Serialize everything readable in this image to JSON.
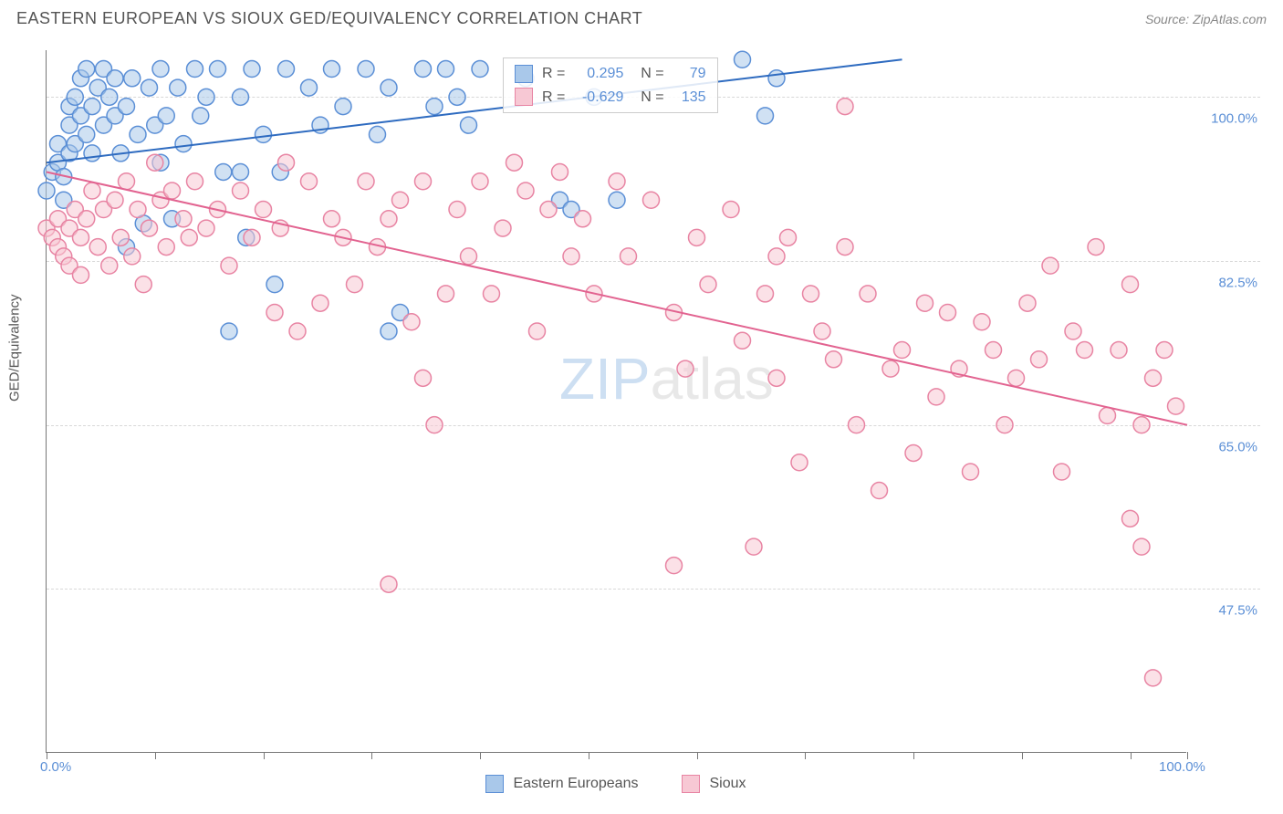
{
  "title": "EASTERN EUROPEAN VS SIOUX GED/EQUIVALENCY CORRELATION CHART",
  "source": "Source: ZipAtlas.com",
  "watermark": {
    "zip": "ZIP",
    "atlas": "atlas"
  },
  "chart": {
    "type": "scatter",
    "xlim": [
      0,
      100
    ],
    "ylim": [
      30,
      105
    ],
    "xlabel_min": "0.0%",
    "xlabel_max": "100.0%",
    "ylabel": "GED/Equivalency",
    "xtick_positions": [
      0.0,
      0.095,
      0.19,
      0.285,
      0.38,
      0.475,
      0.57,
      0.665,
      0.76,
      0.855,
      0.95,
      1.0
    ],
    "gridlines_y": [
      {
        "pct": 100.0,
        "label": "100.0%"
      },
      {
        "pct": 82.5,
        "label": "82.5%"
      },
      {
        "pct": 65.0,
        "label": "65.0%"
      },
      {
        "pct": 47.5,
        "label": "47.5%"
      }
    ],
    "background_color": "#ffffff",
    "grid_color": "#d8d8d8",
    "axis_color": "#777777",
    "tick_label_color": "#5b8fd6",
    "marker_radius": 9,
    "marker_opacity": 0.55,
    "marker_stroke_width": 1.5,
    "series": [
      {
        "name": "Eastern Europeans",
        "color_fill": "#a9c8ea",
        "color_stroke": "#5b8fd6",
        "R": "0.295",
        "N": "79",
        "trend": {
          "x1": 0,
          "y1": 93,
          "x2": 75,
          "y2": 104,
          "stroke": "#2e6bc0",
          "width": 2
        },
        "points": [
          [
            0,
            90
          ],
          [
            0.5,
            92
          ],
          [
            1,
            95
          ],
          [
            1,
            93
          ],
          [
            1.5,
            91.5
          ],
          [
            1.5,
            89
          ],
          [
            2,
            99
          ],
          [
            2,
            97
          ],
          [
            2,
            94
          ],
          [
            2.5,
            100
          ],
          [
            2.5,
            95
          ],
          [
            3,
            102
          ],
          [
            3,
            98
          ],
          [
            3.5,
            103
          ],
          [
            3.5,
            96
          ],
          [
            4,
            99
          ],
          [
            4,
            94
          ],
          [
            4.5,
            101
          ],
          [
            5,
            103
          ],
          [
            5,
            97
          ],
          [
            5.5,
            100
          ],
          [
            6,
            102
          ],
          [
            6,
            98
          ],
          [
            6.5,
            94
          ],
          [
            7,
            99
          ],
          [
            7,
            84
          ],
          [
            7.5,
            102
          ],
          [
            8,
            96
          ],
          [
            8.5,
            86.5
          ],
          [
            9,
            101
          ],
          [
            9.5,
            97
          ],
          [
            10,
            103
          ],
          [
            10,
            93
          ],
          [
            10.5,
            98
          ],
          [
            11,
            87
          ],
          [
            11.5,
            101
          ],
          [
            12,
            95
          ],
          [
            13,
            103
          ],
          [
            13.5,
            98
          ],
          [
            14,
            100
          ],
          [
            15,
            103
          ],
          [
            15.5,
            92
          ],
          [
            16,
            75
          ],
          [
            17,
            100
          ],
          [
            17,
            92
          ],
          [
            17.5,
            85
          ],
          [
            18,
            103
          ],
          [
            19,
            96
          ],
          [
            20,
            80
          ],
          [
            20.5,
            92
          ],
          [
            21,
            103
          ],
          [
            23,
            101
          ],
          [
            24,
            97
          ],
          [
            25,
            103
          ],
          [
            26,
            99
          ],
          [
            28,
            103
          ],
          [
            29,
            96
          ],
          [
            30,
            101
          ],
          [
            30,
            75
          ],
          [
            31,
            77
          ],
          [
            33,
            103
          ],
          [
            34,
            99
          ],
          [
            35,
            103
          ],
          [
            36,
            100
          ],
          [
            37,
            97
          ],
          [
            38,
            103
          ],
          [
            42,
            102
          ],
          [
            45,
            89
          ],
          [
            46,
            88
          ],
          [
            48,
            100
          ],
          [
            50,
            89
          ],
          [
            61,
            104
          ],
          [
            63,
            98
          ],
          [
            64,
            102
          ]
        ]
      },
      {
        "name": "Sioux",
        "color_fill": "#f7c8d4",
        "color_stroke": "#e884a3",
        "R": "-0.629",
        "N": "135",
        "trend": {
          "x1": 0,
          "y1": 92,
          "x2": 100,
          "y2": 65,
          "stroke": "#e26390",
          "width": 2
        },
        "points": [
          [
            0,
            86
          ],
          [
            0.5,
            85
          ],
          [
            1,
            87
          ],
          [
            1,
            84
          ],
          [
            1.5,
            83
          ],
          [
            2,
            86
          ],
          [
            2,
            82
          ],
          [
            2.5,
            88
          ],
          [
            3,
            85
          ],
          [
            3,
            81
          ],
          [
            3.5,
            87
          ],
          [
            4,
            90
          ],
          [
            4.5,
            84
          ],
          [
            5,
            88
          ],
          [
            5.5,
            82
          ],
          [
            6,
            89
          ],
          [
            6.5,
            85
          ],
          [
            7,
            91
          ],
          [
            7.5,
            83
          ],
          [
            8,
            88
          ],
          [
            8.5,
            80
          ],
          [
            9,
            86
          ],
          [
            9.5,
            93
          ],
          [
            10,
            89
          ],
          [
            10.5,
            84
          ],
          [
            11,
            90
          ],
          [
            12,
            87
          ],
          [
            12.5,
            85
          ],
          [
            13,
            91
          ],
          [
            14,
            86
          ],
          [
            15,
            88
          ],
          [
            16,
            82
          ],
          [
            17,
            90
          ],
          [
            18,
            85
          ],
          [
            19,
            88
          ],
          [
            20,
            77
          ],
          [
            20.5,
            86
          ],
          [
            21,
            93
          ],
          [
            22,
            75
          ],
          [
            23,
            91
          ],
          [
            24,
            78
          ],
          [
            25,
            87
          ],
          [
            26,
            85
          ],
          [
            27,
            80
          ],
          [
            28,
            91
          ],
          [
            29,
            84
          ],
          [
            30,
            48
          ],
          [
            30,
            87
          ],
          [
            31,
            89
          ],
          [
            32,
            76
          ],
          [
            33,
            70
          ],
          [
            33,
            91
          ],
          [
            34,
            65
          ],
          [
            35,
            79
          ],
          [
            36,
            88
          ],
          [
            37,
            83
          ],
          [
            38,
            91
          ],
          [
            39,
            79
          ],
          [
            40,
            86
          ],
          [
            41,
            93
          ],
          [
            42,
            90
          ],
          [
            43,
            75
          ],
          [
            44,
            88
          ],
          [
            45,
            92
          ],
          [
            46,
            83
          ],
          [
            47,
            87
          ],
          [
            48,
            79
          ],
          [
            50,
            91
          ],
          [
            51,
            83
          ],
          [
            53,
            89
          ],
          [
            55,
            77
          ],
          [
            55,
            50
          ],
          [
            56,
            71
          ],
          [
            57,
            85
          ],
          [
            58,
            80
          ],
          [
            60,
            88
          ],
          [
            61,
            74
          ],
          [
            62,
            52
          ],
          [
            63,
            79
          ],
          [
            64,
            70
          ],
          [
            64,
            83
          ],
          [
            65,
            85
          ],
          [
            66,
            61
          ],
          [
            67,
            79
          ],
          [
            68,
            75
          ],
          [
            69,
            72
          ],
          [
            70,
            84
          ],
          [
            70,
            99
          ],
          [
            71,
            65
          ],
          [
            72,
            79
          ],
          [
            73,
            58
          ],
          [
            74,
            71
          ],
          [
            75,
            73
          ],
          [
            76,
            62
          ],
          [
            77,
            78
          ],
          [
            78,
            68
          ],
          [
            79,
            77
          ],
          [
            80,
            71
          ],
          [
            81,
            60
          ],
          [
            82,
            76
          ],
          [
            83,
            73
          ],
          [
            84,
            65
          ],
          [
            85,
            70
          ],
          [
            86,
            78
          ],
          [
            87,
            72
          ],
          [
            88,
            82
          ],
          [
            89,
            60
          ],
          [
            90,
            75
          ],
          [
            91,
            73
          ],
          [
            92,
            84
          ],
          [
            93,
            66
          ],
          [
            94,
            73
          ],
          [
            95,
            55
          ],
          [
            95,
            80
          ],
          [
            96,
            65
          ],
          [
            96,
            52
          ],
          [
            97,
            70
          ],
          [
            97,
            38
          ],
          [
            98,
            73
          ],
          [
            99,
            67
          ]
        ]
      }
    ],
    "bottom_legend": [
      {
        "label": "Eastern Europeans",
        "fill": "#a9c8ea",
        "stroke": "#5b8fd6"
      },
      {
        "label": "Sioux",
        "fill": "#f7c8d4",
        "stroke": "#e884a3"
      }
    ]
  }
}
